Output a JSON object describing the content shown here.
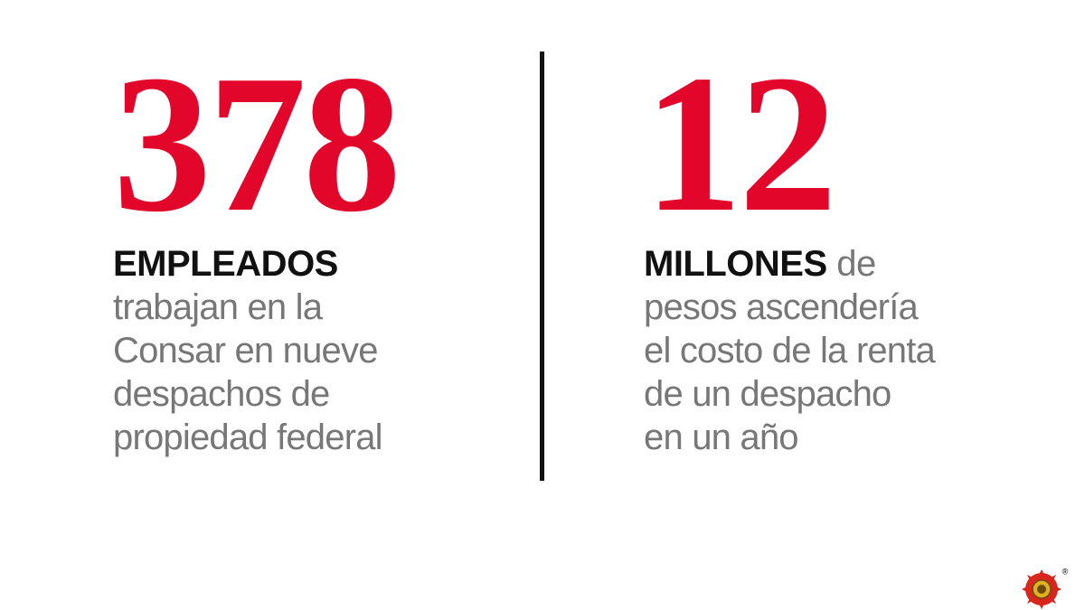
{
  "stats": [
    {
      "number": "378",
      "bold": "EMPLEADOS",
      "after_bold": null,
      "lines": [
        "trabajan en la",
        "Consar en nueve",
        "despachos de",
        "propiedad federal"
      ]
    },
    {
      "number": "12",
      "bold": "MILLONES",
      "after_bold": "de",
      "lines": [
        "pesos ascendería",
        "el costo de la renta",
        "de un despacho",
        "en un año"
      ]
    }
  ],
  "logo": {
    "mark": "®"
  }
}
